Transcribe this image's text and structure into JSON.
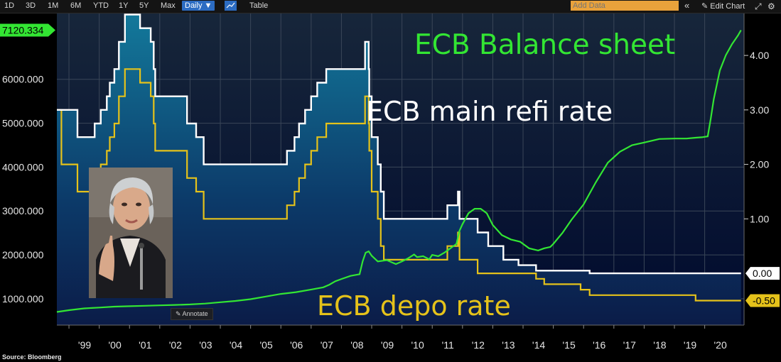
{
  "toolbar": {
    "ranges": [
      "1D",
      "3D",
      "1M",
      "6M",
      "YTD",
      "1Y",
      "5Y",
      "Max"
    ],
    "interval": "Daily ▼",
    "table_label": "Table",
    "add_data_placeholder": "Add Data",
    "collapse_icon": "«",
    "edit_chart_label": "✎ Edit Chart",
    "icons": [
      "expand-icon",
      "gear-icon"
    ]
  },
  "source": "Source:  Bloomberg",
  "annotate_label": "✎ Annotate",
  "colors": {
    "background_top": "#17263a",
    "background_bottom": "#000a2e",
    "area_top": "#13799b",
    "area_bottom": "#0c1f4a",
    "balance_sheet": "#33e633",
    "refi_rate": "#ffffff",
    "depo_rate": "#e5c21a"
  },
  "chart_data": {
    "type": "line",
    "x_range": [
      1998.6,
      2021.3
    ],
    "x_ticks": [
      "'99",
      "'00",
      "'01",
      "'02",
      "'03",
      "'04",
      "'05",
      "'06",
      "'07",
      "'08",
      "'09",
      "'10",
      "'11",
      "'12",
      "'13",
      "'14",
      "'15",
      "'16",
      "'17",
      "'18",
      "'19",
      "'20"
    ],
    "x_tick_values": [
      1999,
      2000,
      2001,
      2002,
      2003,
      2004,
      2005,
      2006,
      2007,
      2008,
      2009,
      2010,
      2011,
      2012,
      2013,
      2014,
      2015,
      2016,
      2017,
      2018,
      2019,
      2020
    ],
    "y_left": {
      "range": [
        400,
        7500
      ],
      "ticks": [
        "1000.000",
        "2000.000",
        "3000.000",
        "4000.000",
        "5000.000",
        "6000.000"
      ],
      "tick_values": [
        1000,
        2000,
        3000,
        4000,
        5000,
        6000
      ]
    },
    "y_right": {
      "range": [
        -0.95,
        4.77
      ],
      "ticks": [
        "4.00",
        "3.00",
        "2.00",
        "1.00"
      ],
      "tick_values": [
        4,
        3,
        2,
        1
      ]
    },
    "last_value_label": "7120.334",
    "last_value_level": 7120.334,
    "series": [
      {
        "name": "ECB Balance sheet",
        "axis": "left",
        "color": "#33e633",
        "x": [
          1998.6,
          1999.0,
          1999.5,
          2000.0,
          2000.5,
          2001.0,
          2001.5,
          2002.0,
          2002.5,
          2003.0,
          2003.5,
          2004.0,
          2004.5,
          2005.0,
          2005.5,
          2006.0,
          2006.5,
          2007.0,
          2007.4,
          2007.6,
          2007.8,
          2008.0,
          2008.3,
          2008.6,
          2008.7,
          2008.8,
          2008.9,
          2009.0,
          2009.2,
          2009.5,
          2009.8,
          2010.0,
          2010.2,
          2010.4,
          2010.5,
          2010.7,
          2010.9,
          2011.0,
          2011.2,
          2011.4,
          2011.6,
          2011.8,
          2011.9,
          2012.0,
          2012.2,
          2012.4,
          2012.6,
          2012.8,
          2013.0,
          2013.3,
          2013.6,
          2013.9,
          2014.2,
          2014.5,
          2014.7,
          2014.9,
          2015.0,
          2015.3,
          2015.6,
          2016.0,
          2016.4,
          2016.8,
          2017.2,
          2017.6,
          2018.0,
          2018.5,
          2019.0,
          2019.4,
          2019.7,
          2019.9,
          2020.1,
          2020.2,
          2020.3,
          2020.5,
          2020.7,
          2020.9,
          2021.1,
          2021.2
        ],
        "values": [
          700,
          740,
          780,
          800,
          820,
          830,
          840,
          850,
          860,
          870,
          890,
          920,
          950,
          990,
          1050,
          1110,
          1150,
          1210,
          1260,
          1320,
          1400,
          1450,
          1520,
          1560,
          1850,
          2050,
          2080,
          1980,
          1850,
          1880,
          1790,
          1850,
          1920,
          2010,
          1950,
          1970,
          1900,
          2000,
          1970,
          2050,
          2150,
          2250,
          2550,
          2700,
          2950,
          3050,
          3050,
          2950,
          2680,
          2450,
          2350,
          2300,
          2150,
          2100,
          2150,
          2180,
          2250,
          2500,
          2800,
          3150,
          3650,
          4100,
          4350,
          4500,
          4560,
          4640,
          4650,
          4650,
          4670,
          4680,
          4700,
          5100,
          5550,
          6200,
          6550,
          6800,
          7000,
          7120
        ]
      },
      {
        "name": "ECB main refi rate",
        "axis": "right",
        "color": "#ffffff",
        "x": [
          1998.6,
          1999.28,
          1999.85,
          2000.05,
          2000.25,
          2000.35,
          2000.5,
          2000.65,
          2000.85,
          2001.35,
          2001.7,
          2001.8,
          2001.85,
          2002.9,
          2003.2,
          2003.45,
          2005.9,
          2006.2,
          2006.45,
          2006.6,
          2006.8,
          2007.0,
          2007.2,
          2007.5,
          2008.5,
          2008.78,
          2008.9,
          2008.92,
          2009.0,
          2009.2,
          2009.3,
          2009.4,
          2011.25,
          2011.5,
          2011.85,
          2011.9,
          2012.5,
          2012.85,
          2013.35,
          2013.85,
          2014.43,
          2014.7,
          2016.2,
          2021.2
        ],
        "values": [
          3.0,
          2.5,
          2.75,
          3.0,
          3.25,
          3.5,
          3.75,
          4.25,
          4.75,
          4.5,
          4.25,
          3.75,
          3.25,
          2.75,
          2.5,
          2.0,
          2.0,
          2.25,
          2.5,
          2.75,
          3.0,
          3.25,
          3.5,
          3.75,
          3.75,
          4.25,
          3.75,
          3.25,
          2.5,
          2.0,
          1.5,
          1.0,
          1.0,
          1.25,
          1.5,
          1.0,
          0.75,
          0.5,
          0.25,
          0.15,
          0.05,
          0.05,
          0.0,
          0.0
        ],
        "end_label": "0.00"
      },
      {
        "name": "ECB depo rate",
        "axis": "right",
        "color": "#e5c21a",
        "x": [
          1998.6,
          1998.75,
          1999.28,
          1999.85,
          2000.05,
          2000.25,
          2000.35,
          2000.5,
          2000.65,
          2000.85,
          2001.35,
          2001.7,
          2001.8,
          2001.85,
          2002.9,
          2003.2,
          2003.45,
          2005.9,
          2006.2,
          2006.45,
          2006.6,
          2006.8,
          2007.0,
          2007.2,
          2007.5,
          2008.5,
          2008.78,
          2008.9,
          2008.92,
          2009.0,
          2009.2,
          2009.3,
          2009.4,
          2011.25,
          2011.5,
          2011.85,
          2011.9,
          2012.5,
          2014.43,
          2014.7,
          2015.9,
          2016.2,
          2019.7,
          2021.2
        ],
        "values": [
          3.0,
          2.0,
          1.5,
          1.75,
          2.0,
          2.25,
          2.5,
          2.75,
          3.25,
          3.75,
          3.5,
          3.25,
          2.75,
          2.25,
          1.75,
          1.5,
          1.0,
          1.0,
          1.25,
          1.5,
          1.75,
          2.0,
          2.25,
          2.5,
          2.75,
          2.75,
          3.25,
          2.75,
          2.25,
          1.5,
          1.0,
          0.5,
          0.25,
          0.25,
          0.5,
          0.75,
          0.25,
          0.0,
          -0.1,
          -0.2,
          -0.3,
          -0.4,
          -0.5,
          -0.5
        ],
        "end_label": "-0.50"
      }
    ],
    "annotations": [
      {
        "text": "ECB Balance sheet",
        "color": "#33e633"
      },
      {
        "text": "ECB main refi rate",
        "color": "#ffffff"
      },
      {
        "text": "ECB depo rate",
        "color": "#e5c21a"
      }
    ],
    "grid": true
  }
}
